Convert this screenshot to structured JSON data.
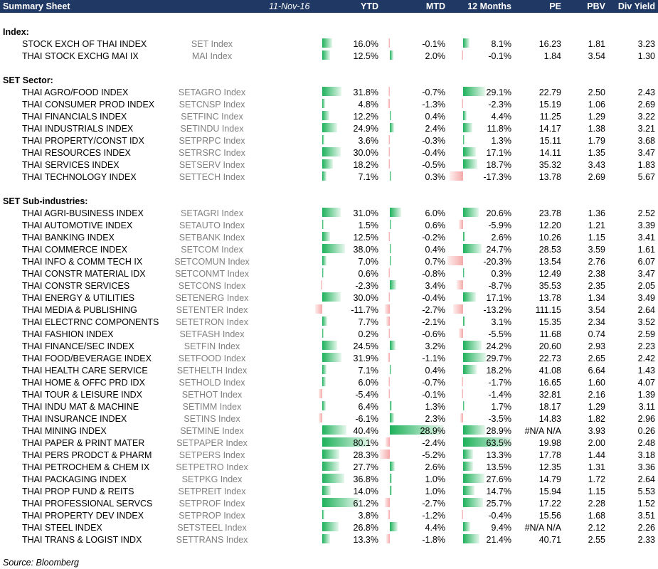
{
  "header": {
    "title": "Summary Sheet",
    "date": "11-Nov-16",
    "columns": {
      "ytd": "YTD",
      "mtd": "MTD",
      "m12": "12 Months",
      "pe": "PE",
      "pbv": "PBV",
      "div": "Div Yield"
    }
  },
  "colors": {
    "header_bg": "#1f3864",
    "positive_bar": "#1eb15a",
    "negative_bar": "#f5a9a9"
  },
  "sections": [
    {
      "title": "Index:",
      "rows": [
        {
          "name": "STOCK EXCH OF THAI INDEX",
          "ticker": "SET Index",
          "ytd": "16.0%",
          "mtd": "-0.1%",
          "m12": "8.1%",
          "pe": "16.23",
          "pbv": "1.81",
          "div": "3.23"
        },
        {
          "name": "THAI STOCK EXCHG MAI IX",
          "ticker": "MAI Index",
          "ytd": "12.5%",
          "mtd": "2.0%",
          "m12": "-0.1%",
          "pe": "1.84",
          "pbv": "3.54",
          "div": "1.30"
        }
      ]
    },
    {
      "title": "SET Sector:",
      "rows": [
        {
          "name": "THAI AGRO/FOOD INDEX",
          "ticker": "SETAGRO Index",
          "ytd": "31.8%",
          "mtd": "-0.7%",
          "m12": "29.1%",
          "pe": "22.79",
          "pbv": "2.50",
          "div": "2.43"
        },
        {
          "name": "THAI CONSUMER PROD INDEX",
          "ticker": "SETCNSP Index",
          "ytd": "4.8%",
          "mtd": "-1.3%",
          "m12": "-2.3%",
          "pe": "15.19",
          "pbv": "1.06",
          "div": "2.69"
        },
        {
          "name": "THAI FINANCIALS INDEX",
          "ticker": "SETFINC Index",
          "ytd": "12.2%",
          "mtd": "0.4%",
          "m12": "4.4%",
          "pe": "11.25",
          "pbv": "1.29",
          "div": "3.22"
        },
        {
          "name": "THAI INDUSTRIALS INDEX",
          "ticker": "SETINDU Index",
          "ytd": "24.9%",
          "mtd": "2.4%",
          "m12": "11.8%",
          "pe": "14.17",
          "pbv": "1.38",
          "div": "3.21"
        },
        {
          "name": "THAI PROPERTY/CONST IDX",
          "ticker": "SETPRPC Index",
          "ytd": "3.6%",
          "mtd": "-0.3%",
          "m12": "1.3%",
          "pe": "15.11",
          "pbv": "1.79",
          "div": "3.68"
        },
        {
          "name": "THAI RESOURCES INDEX",
          "ticker": "SETRSRC Index",
          "ytd": "30.0%",
          "mtd": "-0.4%",
          "m12": "17.1%",
          "pe": "14.11",
          "pbv": "1.35",
          "div": "3.47"
        },
        {
          "name": "THAI SERVICES INDEX",
          "ticker": "SETSERV Index",
          "ytd": "18.2%",
          "mtd": "-0.5%",
          "m12": "18.7%",
          "pe": "35.32",
          "pbv": "3.43",
          "div": "1.83"
        },
        {
          "name": "THAI TECHNOLOGY INDEX",
          "ticker": "SETTECH Index",
          "ytd": "7.1%",
          "mtd": "0.3%",
          "m12": "-17.3%",
          "pe": "13.78",
          "pbv": "2.69",
          "div": "5.67"
        }
      ]
    },
    {
      "title": "SET Sub-industries:",
      "rows": [
        {
          "name": "THAI AGRI-BUSINESS INDEX",
          "ticker": "SETAGRI Index",
          "ytd": "31.0%",
          "mtd": "6.0%",
          "m12": "20.6%",
          "pe": "23.78",
          "pbv": "1.36",
          "div": "2.52"
        },
        {
          "name": "THAI AUTOMOTIVE INDEX",
          "ticker": "SETAUTO Index",
          "ytd": "1.5%",
          "mtd": "0.6%",
          "m12": "-5.9%",
          "pe": "12.20",
          "pbv": "1.21",
          "div": "3.39"
        },
        {
          "name": "THAI BANKING INDEX",
          "ticker": "SETBANK Index",
          "ytd": "12.5%",
          "mtd": "-0.2%",
          "m12": "2.6%",
          "pe": "10.26",
          "pbv": "1.15",
          "div": "3.41"
        },
        {
          "name": "THAI COMMERCE INDEX",
          "ticker": "SETCOM Index",
          "ytd": "38.0%",
          "mtd": "0.4%",
          "m12": "24.7%",
          "pe": "28.53",
          "pbv": "3.59",
          "div": "1.61"
        },
        {
          "name": "THAI INFO & COMM TECH IX",
          "ticker": "SETCOMUN Index",
          "ytd": "7.0%",
          "mtd": "0.7%",
          "m12": "-20.3%",
          "pe": "13.54",
          "pbv": "2.76",
          "div": "6.07"
        },
        {
          "name": "THAI CONSTR MATERIAL IDX",
          "ticker": "SETCONMT Index",
          "ytd": "0.6%",
          "mtd": "-0.8%",
          "m12": "0.3%",
          "pe": "12.49",
          "pbv": "2.38",
          "div": "3.47"
        },
        {
          "name": "THAI CONSTR SERVICES",
          "ticker": "SETCONS Index",
          "ytd": "-2.3%",
          "mtd": "3.4%",
          "m12": "-8.7%",
          "pe": "35.53",
          "pbv": "2.35",
          "div": "2.05"
        },
        {
          "name": "THAI ENERGY & UTILITIES",
          "ticker": "SETENERG Index",
          "ytd": "30.0%",
          "mtd": "-0.4%",
          "m12": "17.1%",
          "pe": "13.78",
          "pbv": "1.34",
          "div": "3.49"
        },
        {
          "name": "THAI MEDIA & PUBLISHING",
          "ticker": "SETENTER Index",
          "ytd": "-11.7%",
          "mtd": "-2.7%",
          "m12": "-13.2%",
          "pe": "111.15",
          "pbv": "3.54",
          "div": "2.64"
        },
        {
          "name": "THAI ELECTRNC COMPONENTS",
          "ticker": "SETETRON Index",
          "ytd": "7.7%",
          "mtd": "-2.1%",
          "m12": "3.1%",
          "pe": "15.35",
          "pbv": "2.34",
          "div": "3.52"
        },
        {
          "name": "THAI FASHION INDEX",
          "ticker": "SETFASH Index",
          "ytd": "0.2%",
          "mtd": "-0.6%",
          "m12": "-5.5%",
          "pe": "11.68",
          "pbv": "0.74",
          "div": "2.59"
        },
        {
          "name": "THAI FINANCE/SEC INDEX",
          "ticker": "SETFIN Index",
          "ytd": "24.5%",
          "mtd": "3.2%",
          "m12": "24.2%",
          "pe": "20.60",
          "pbv": "2.93",
          "div": "2.23"
        },
        {
          "name": "THAI FOOD/BEVERAGE INDEX",
          "ticker": "SETFOOD Index",
          "ytd": "31.9%",
          "mtd": "-1.1%",
          "m12": "29.7%",
          "pe": "22.73",
          "pbv": "2.65",
          "div": "2.42"
        },
        {
          "name": "THAI HEALTH CARE SERVICE",
          "ticker": "SETHELTH Index",
          "ytd": "7.1%",
          "mtd": "0.4%",
          "m12": "18.2%",
          "pe": "41.08",
          "pbv": "6.64",
          "div": "1.43"
        },
        {
          "name": "THAI HOME & OFFC PRD IDX",
          "ticker": "SETHOLD Index",
          "ytd": "6.0%",
          "mtd": "-0.7%",
          "m12": "-1.7%",
          "pe": "16.65",
          "pbv": "1.60",
          "div": "4.07"
        },
        {
          "name": "THAI TOUR & LEISURE INDX",
          "ticker": "SETHOT Index",
          "ytd": "-5.4%",
          "mtd": "-0.1%",
          "m12": "-1.4%",
          "pe": "32.81",
          "pbv": "2.16",
          "div": "1.39"
        },
        {
          "name": "THAI INDU MAT & MACHINE",
          "ticker": "SETIMM Index",
          "ytd": "6.4%",
          "mtd": "1.3%",
          "m12": "1.7%",
          "pe": "18.17",
          "pbv": "1.29",
          "div": "3.11"
        },
        {
          "name": "THAI INSURANCE INDEX",
          "ticker": "SETINS Index",
          "ytd": "-6.1%",
          "mtd": "2.3%",
          "m12": "-3.5%",
          "pe": "14.83",
          "pbv": "1.82",
          "div": "2.96"
        },
        {
          "name": "THAI MINING INDEX",
          "ticker": "SETMINE Index",
          "ytd": "40.4%",
          "mtd": "28.9%",
          "m12": "28.9%",
          "pe": "#N/A N/A",
          "pbv": "3.93",
          "div": "0.26"
        },
        {
          "name": "THAI PAPER & PRINT MATER",
          "ticker": "SETPAPER Index",
          "ytd": "80.1%",
          "mtd": "-2.4%",
          "m12": "63.5%",
          "pe": "19.98",
          "pbv": "2.00",
          "div": "2.48"
        },
        {
          "name": "THAI PERS PRODCT & PHARM",
          "ticker": "SETPERS Index",
          "ytd": "28.3%",
          "mtd": "-5.2%",
          "m12": "13.3%",
          "pe": "17.78",
          "pbv": "1.44",
          "div": "3.18"
        },
        {
          "name": "THAI PETROCHEM & CHEM IX",
          "ticker": "SETPETRO Index",
          "ytd": "27.7%",
          "mtd": "2.6%",
          "m12": "13.5%",
          "pe": "12.35",
          "pbv": "1.31",
          "div": "3.36"
        },
        {
          "name": "THAI PACKAGING INDEX",
          "ticker": "SETPKG Index",
          "ytd": "36.8%",
          "mtd": "1.0%",
          "m12": "27.6%",
          "pe": "14.79",
          "pbv": "1.72",
          "div": "2.64"
        },
        {
          "name": "THAI PROP FUND & REITS",
          "ticker": "SETPREIT Index",
          "ytd": "14.0%",
          "mtd": "1.0%",
          "m12": "14.7%",
          "pe": "15.94",
          "pbv": "1.15",
          "div": "5.53"
        },
        {
          "name": "THAI PROFESSIONAL SERVCS",
          "ticker": "SETPROF Index",
          "ytd": "61.2%",
          "mtd": "-2.7%",
          "m12": "25.7%",
          "pe": "17.22",
          "pbv": "2.28",
          "div": "1.52"
        },
        {
          "name": "THAI PROPERTY DEV INDEX",
          "ticker": "SETPROP Index",
          "ytd": "3.8%",
          "mtd": "-1.2%",
          "m12": "-0.4%",
          "pe": "15.56",
          "pbv": "1.68",
          "div": "3.51"
        },
        {
          "name": "THAI STEEL INDEX",
          "ticker": "SETSTEEL Index",
          "ytd": "26.8%",
          "mtd": "4.4%",
          "m12": "9.4%",
          "pe": "#N/A N/A",
          "pbv": "2.12",
          "div": "2.26"
        },
        {
          "name": "THAI TRANS & LOGIST INDX",
          "ticker": "SETTRANS Index",
          "ytd": "13.3%",
          "mtd": "-1.8%",
          "m12": "21.4%",
          "pe": "40.71",
          "pbv": "2.55",
          "div": "2.33"
        }
      ]
    }
  ],
  "source": "Source: Bloomberg"
}
